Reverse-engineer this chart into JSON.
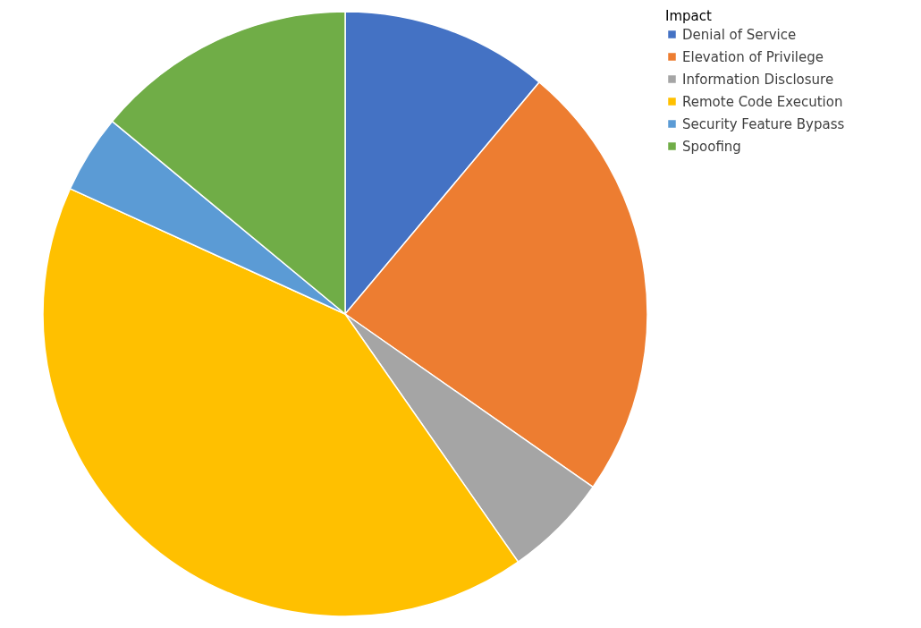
{
  "chart_data": {
    "type": "pie",
    "legend_title": "Impact",
    "legend": "right",
    "categories": [
      "Denial of Service",
      "Elevation of Privilege",
      "Information Disclosure",
      "Remote Code Execution",
      "Security Feature Bypass",
      "Spoofing"
    ],
    "values": [
      11.1,
      23.6,
      5.6,
      41.5,
      4.2,
      14.0
    ],
    "colors": [
      "#4472c4",
      "#ed7d31",
      "#a5a5a5",
      "#ffc000",
      "#5b9bd5",
      "#70ad47"
    ]
  }
}
